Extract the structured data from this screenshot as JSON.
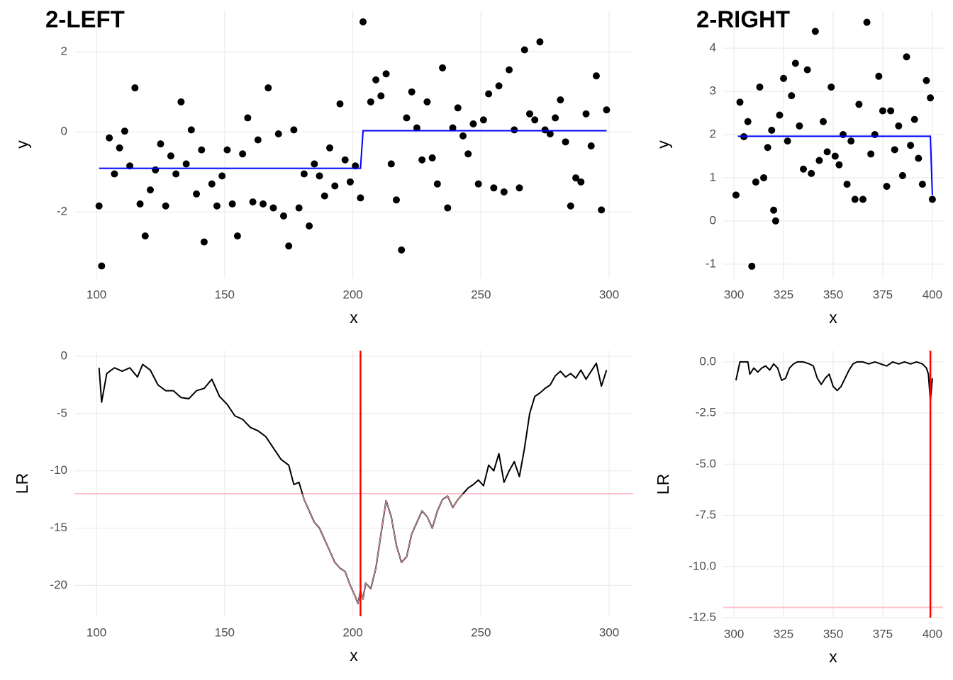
{
  "chart_data": [
    {
      "type": "scatter",
      "title": "2-LEFT",
      "x_label": "x",
      "y_label": "y",
      "xlim": [
        91.4,
        309.4
      ],
      "ylim": [
        -3.66,
        3.03
      ],
      "xticks": [
        100,
        150,
        200,
        250,
        300
      ],
      "yticks": [
        -2,
        0,
        2
      ],
      "grid": true,
      "points": {
        "color": "#000000",
        "x": [
          101,
          102,
          105,
          107,
          109,
          111,
          113,
          115,
          117,
          119,
          121,
          123,
          125,
          127,
          129,
          131,
          133,
          135,
          137,
          139,
          141,
          142,
          145,
          147,
          149,
          151,
          153,
          155,
          157,
          159,
          161,
          163,
          165,
          167,
          169,
          171,
          173,
          175,
          177,
          179,
          181,
          183,
          185,
          187,
          189,
          191,
          193,
          195,
          197,
          199,
          201,
          203,
          204,
          207,
          209,
          211,
          213,
          215,
          217,
          219,
          221,
          223,
          225,
          227,
          229,
          231,
          233,
          235,
          237,
          239,
          241,
          243,
          245,
          247,
          249,
          251,
          253,
          255,
          257,
          259,
          261,
          263,
          265,
          267,
          269,
          271,
          273,
          275,
          277,
          279,
          281,
          283,
          285,
          287,
          289,
          291,
          293,
          295,
          297,
          299
        ],
        "values": [
          -1.85,
          -3.35,
          -0.15,
          -1.05,
          -0.4,
          0.02,
          -0.85,
          1.1,
          -1.8,
          -2.6,
          -1.45,
          -0.95,
          -0.3,
          -1.85,
          -0.6,
          -1.05,
          0.75,
          -0.8,
          0.05,
          -1.55,
          -0.45,
          -2.75,
          -1.3,
          -1.85,
          -1.1,
          -0.45,
          -1.8,
          -2.6,
          -0.55,
          0.35,
          -1.75,
          -0.2,
          -1.8,
          1.1,
          -1.9,
          -0.05,
          -2.1,
          -2.85,
          0.05,
          -1.9,
          -1.05,
          -2.35,
          -0.8,
          -1.1,
          -1.6,
          -0.4,
          -1.35,
          0.7,
          -0.7,
          -1.25,
          -0.85,
          -1.65,
          2.75,
          0.75,
          1.3,
          0.9,
          1.45,
          -0.8,
          -1.7,
          -2.95,
          0.35,
          1.0,
          0.1,
          -0.7,
          0.75,
          -0.65,
          -1.3,
          1.6,
          -1.9,
          0.1,
          0.6,
          -0.1,
          -0.55,
          0.2,
          -1.3,
          0.3,
          0.95,
          -1.4,
          1.15,
          -1.5,
          1.55,
          0.05,
          -1.4,
          2.05,
          0.45,
          0.3,
          2.25,
          0.05,
          -0.05,
          0.35,
          0.8,
          -0.25,
          -1.85,
          -1.15,
          -1.25,
          0.45,
          -0.35,
          1.4,
          -1.95,
          0.55
        ]
      },
      "fit": {
        "color": "#0000ff",
        "x": [
          101,
          203,
          204,
          299
        ],
        "values": [
          -0.91,
          -0.91,
          0.03,
          0.03
        ]
      }
    },
    {
      "type": "scatter",
      "title": "2-RIGHT",
      "x_label": "x",
      "y_label": "y",
      "xlim": [
        294.6,
        405.4
      ],
      "ylim": [
        -1.33,
        4.87
      ],
      "xticks": [
        300,
        325,
        350,
        375,
        400
      ],
      "yticks": [
        -1,
        0,
        1,
        2,
        3,
        4
      ],
      "grid": true,
      "points": {
        "color": "#000000",
        "x": [
          301,
          303,
          305,
          307,
          309,
          311,
          313,
          315,
          317,
          319,
          320,
          321,
          323,
          325,
          327,
          329,
          331,
          333,
          335,
          337,
          339,
          341,
          343,
          345,
          347,
          349,
          351,
          353,
          355,
          357,
          359,
          361,
          363,
          365,
          367,
          369,
          371,
          373,
          375,
          377,
          379,
          381,
          383,
          385,
          387,
          389,
          391,
          393,
          395,
          397,
          399,
          400
        ],
        "values": [
          0.6,
          2.75,
          1.95,
          2.3,
          -1.05,
          0.9,
          3.1,
          1.0,
          1.7,
          2.1,
          0.25,
          0.0,
          2.45,
          3.3,
          1.85,
          2.9,
          3.65,
          2.2,
          1.2,
          3.5,
          1.1,
          4.39,
          1.4,
          2.3,
          1.6,
          3.1,
          1.5,
          1.3,
          2.0,
          0.85,
          1.85,
          0.5,
          2.7,
          0.5,
          4.6,
          1.55,
          2.0,
          3.35,
          2.55,
          0.8,
          2.55,
          1.65,
          2.2,
          1.05,
          3.8,
          1.75,
          2.35,
          1.45,
          0.85,
          3.25,
          2.85,
          0.5
        ]
      },
      "fit": {
        "color": "#0000ff",
        "x": [
          302,
          399,
          400
        ],
        "values": [
          1.96,
          1.96,
          0.6
        ]
      }
    },
    {
      "type": "line",
      "x_label": "x",
      "y_label": "LR",
      "xlim": [
        91.4,
        309.4
      ],
      "ylim": [
        -22.7,
        0.5
      ],
      "xticks": [
        100,
        150,
        200,
        250,
        300
      ],
      "yticks": [
        -20,
        -15,
        -10,
        -5,
        0
      ],
      "grid": true,
      "color": "#000000",
      "below_color": "#f4a6b0",
      "hline": {
        "value": -12,
        "color": "#ffc0cb"
      },
      "vline": {
        "value": 203,
        "color": "#ff0000"
      },
      "x": [
        101,
        102,
        104,
        107,
        110,
        113,
        116,
        118,
        121,
        124,
        127,
        130,
        133,
        136,
        139,
        142,
        145,
        148,
        151,
        154,
        157,
        160,
        163,
        166,
        169,
        172,
        175,
        177,
        179,
        181,
        183,
        185,
        187,
        189,
        191,
        193,
        195,
        197,
        199,
        201,
        202,
        203,
        204,
        205,
        207,
        209,
        211,
        213,
        215,
        217,
        219,
        221,
        223,
        225,
        227,
        229,
        231,
        233,
        235,
        237,
        239,
        241,
        243,
        245,
        247,
        249,
        251,
        253,
        255,
        257,
        259,
        261,
        263,
        265,
        267,
        269,
        271,
        273,
        275,
        277,
        279,
        281,
        283,
        285,
        287,
        289,
        291,
        293,
        295,
        297,
        299
      ],
      "values": [
        -1.0,
        -4.0,
        -1.5,
        -1.0,
        -1.3,
        -1.0,
        -1.8,
        -0.7,
        -1.2,
        -2.5,
        -3.0,
        -3.0,
        -3.6,
        -3.7,
        -3.0,
        -2.8,
        -2.0,
        -3.5,
        -4.2,
        -5.2,
        -5.5,
        -6.2,
        -6.5,
        -7.0,
        -8.0,
        -9.0,
        -9.5,
        -11.2,
        -11.0,
        -12.5,
        -13.5,
        -14.5,
        -15.0,
        -16.0,
        -17.0,
        -18.0,
        -18.5,
        -18.8,
        -20.0,
        -21.0,
        -21.6,
        -20.5,
        -21.2,
        -19.8,
        -20.3,
        -18.5,
        -15.5,
        -12.6,
        -14.0,
        -16.5,
        -18.0,
        -17.5,
        -15.5,
        -14.5,
        -13.5,
        -14.0,
        -15.0,
        -13.5,
        -12.5,
        -12.2,
        -13.2,
        -12.5,
        -12.0,
        -11.5,
        -11.2,
        -10.8,
        -11.3,
        -9.5,
        -10.0,
        -8.5,
        -11.0,
        -10.0,
        -9.2,
        -10.5,
        -8.0,
        -5.0,
        -3.5,
        -3.2,
        -2.8,
        -2.5,
        -1.7,
        -1.3,
        -1.8,
        -1.5,
        -1.9,
        -1.2,
        -2.0,
        -1.3,
        -0.6,
        -2.6,
        -1.2
      ]
    },
    {
      "type": "line",
      "x_label": "x",
      "y_label": "LR",
      "xlim": [
        294.6,
        405.4
      ],
      "ylim": [
        -12.5,
        0.55
      ],
      "xticks": [
        300,
        325,
        350,
        375,
        400
      ],
      "yticks": [
        {
          "value": 0,
          "label": "0.0"
        },
        -2.5,
        {
          "value": -5,
          "label": "-5.0"
        },
        -7.5,
        {
          "value": -10,
          "label": "-10.0"
        },
        -12.5
      ],
      "grid": true,
      "color": "#000000",
      "below_color": "#f4a6b0",
      "hline": {
        "value": -12,
        "color": "#ffc0cb"
      },
      "vline": {
        "value": 399,
        "color": "#ff0000"
      },
      "x": [
        301,
        303,
        305,
        307,
        308,
        310,
        312,
        314,
        316,
        318,
        320,
        322,
        324,
        326,
        328,
        330,
        332,
        335,
        338,
        340,
        342,
        344,
        346,
        348,
        350,
        352,
        354,
        356,
        358,
        360,
        362,
        365,
        368,
        371,
        374,
        377,
        380,
        383,
        386,
        389,
        392,
        395,
        397,
        398,
        399,
        400
      ],
      "values": [
        -0.9,
        0.0,
        0.0,
        0.0,
        -0.6,
        -0.3,
        -0.5,
        -0.3,
        -0.2,
        -0.4,
        -0.1,
        -0.3,
        -0.9,
        -0.8,
        -0.3,
        -0.1,
        0.0,
        0.0,
        -0.1,
        -0.2,
        -0.8,
        -1.1,
        -0.8,
        -0.6,
        -1.2,
        -1.4,
        -1.2,
        -0.8,
        -0.4,
        -0.1,
        0.0,
        0.0,
        -0.1,
        0.0,
        -0.1,
        -0.2,
        0.0,
        -0.1,
        0.0,
        -0.1,
        0.0,
        -0.1,
        -0.3,
        -0.6,
        -1.9,
        -0.8
      ]
    }
  ]
}
